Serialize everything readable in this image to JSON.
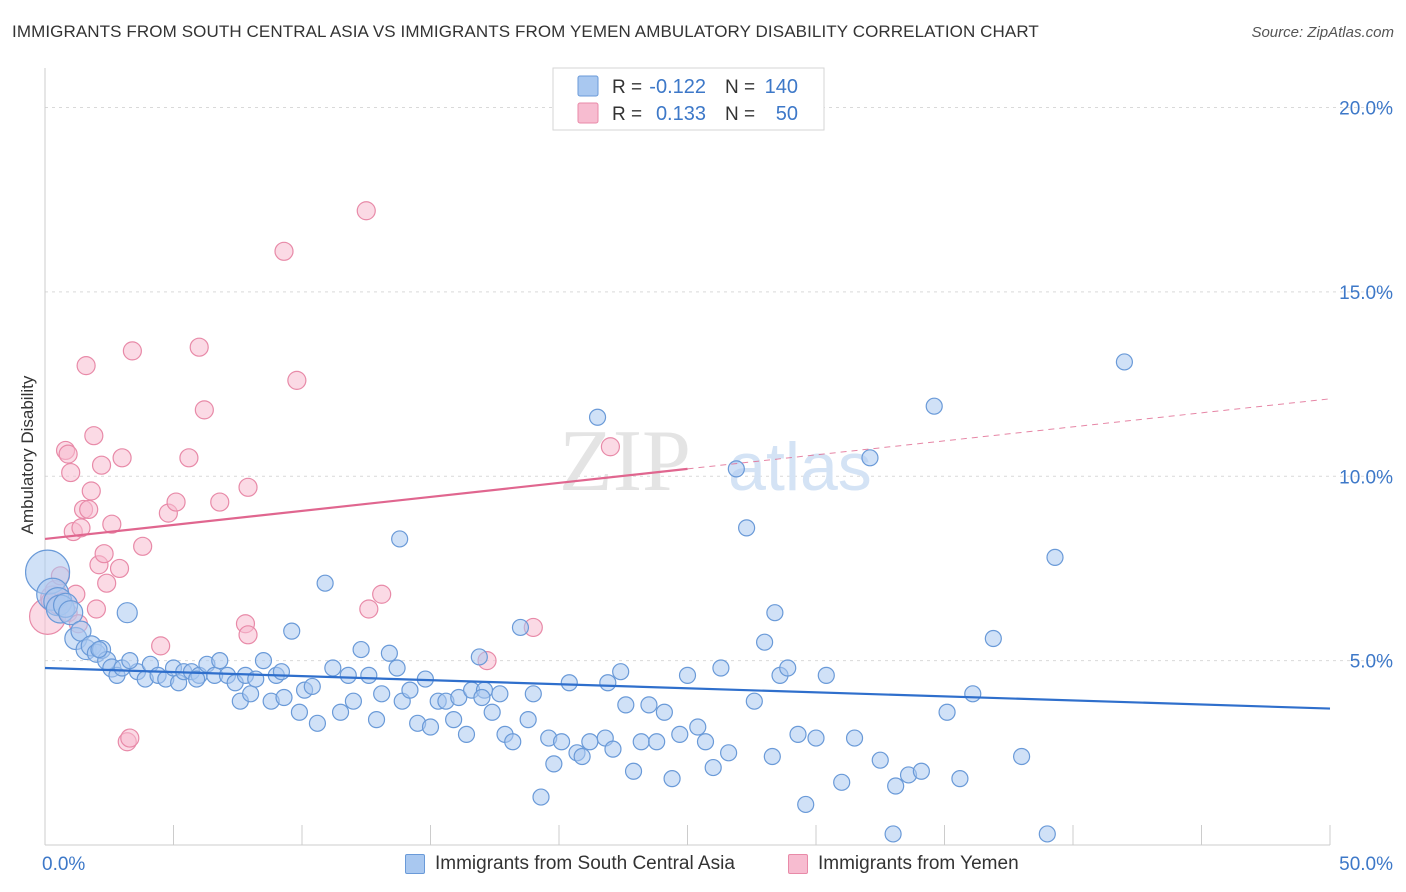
{
  "title": "IMMIGRANTS FROM SOUTH CENTRAL ASIA VS IMMIGRANTS FROM YEMEN AMBULATORY DISABILITY CORRELATION CHART",
  "source": "Source: ZipAtlas.com",
  "watermark": {
    "zip": "ZIP",
    "atlas": "atlas"
  },
  "colors": {
    "blue_fill": "#a9c8f0",
    "blue_stroke": "#6a9ad8",
    "blue_line": "#2f6fcc",
    "pink_fill": "#f7bcd0",
    "pink_stroke": "#e88aa8",
    "pink_line": "#e0668f",
    "tick_label": "#3d78c8",
    "grid": "#d9d9d9"
  },
  "legend": {
    "r_label": "R =",
    "n_label": "N =",
    "rows": [
      {
        "swatch": "blue",
        "r": "-0.122",
        "n": "140"
      },
      {
        "swatch": "pink",
        "r": "0.133",
        "n": "50"
      }
    ]
  },
  "bottom_legend": [
    {
      "swatch": "blue",
      "label": "Immigrants from South Central Asia"
    },
    {
      "swatch": "pink",
      "label": "Immigrants from Yemen"
    }
  ],
  "chart_data": {
    "type": "scatter",
    "xlabel": "",
    "ylabel": "Ambulatory Disability",
    "xlim": [
      0,
      50
    ],
    "ylim": [
      0,
      20.8
    ],
    "x_tick_labels": [
      {
        "value": 0,
        "label": "0.0%"
      },
      {
        "value": 50,
        "label": "50.0%"
      }
    ],
    "y_tick_labels": [
      {
        "value": 5,
        "label": "5.0%"
      },
      {
        "value": 10,
        "label": "10.0%"
      },
      {
        "value": 15,
        "label": "15.0%"
      },
      {
        "value": 20,
        "label": "20.0%"
      }
    ],
    "x_minor_ticks": [
      0,
      5,
      10,
      15,
      20,
      25,
      30,
      35,
      40,
      45,
      50
    ],
    "grid": "horizontal dashed",
    "legend_position": "top-center",
    "series": [
      {
        "name": "Immigrants from South Central Asia",
        "color": "blue",
        "trend": {
          "x": [
            0,
            50
          ],
          "y": [
            4.8,
            3.7
          ]
        },
        "points": [
          [
            0.1,
            7.4,
            22
          ],
          [
            0.3,
            6.8,
            16
          ],
          [
            0.5,
            6.6,
            14
          ],
          [
            0.6,
            6.4,
            14
          ],
          [
            0.8,
            6.5,
            12
          ],
          [
            1.0,
            6.3,
            12
          ],
          [
            1.2,
            5.6,
            11
          ],
          [
            1.4,
            5.8,
            10
          ],
          [
            1.6,
            5.3,
            10
          ],
          [
            1.8,
            5.4,
            10
          ],
          [
            2.0,
            5.2,
            9
          ],
          [
            2.2,
            5.3,
            9
          ],
          [
            2.4,
            5.0,
            9
          ],
          [
            2.6,
            4.8,
            9
          ],
          [
            2.8,
            4.6,
            8
          ],
          [
            3.0,
            4.8,
            8
          ],
          [
            3.2,
            6.3,
            10
          ],
          [
            3.6,
            4.7,
            8
          ],
          [
            3.9,
            4.5,
            8
          ],
          [
            4.1,
            4.9,
            8
          ],
          [
            4.4,
            4.6,
            8
          ],
          [
            4.7,
            4.5,
            8
          ],
          [
            5.0,
            4.8,
            8
          ],
          [
            5.2,
            4.4,
            8
          ],
          [
            5.4,
            4.7,
            8
          ],
          [
            5.7,
            4.7,
            8
          ],
          [
            6.0,
            4.6,
            8
          ],
          [
            6.3,
            4.9,
            8
          ],
          [
            6.6,
            4.6,
            8
          ],
          [
            6.8,
            5.0,
            8
          ],
          [
            7.1,
            4.6,
            8
          ],
          [
            7.4,
            4.4,
            8
          ],
          [
            7.6,
            3.9,
            8
          ],
          [
            7.8,
            4.6,
            8
          ],
          [
            8.0,
            4.1,
            8
          ],
          [
            8.2,
            4.5,
            8
          ],
          [
            8.5,
            5.0,
            8
          ],
          [
            8.8,
            3.9,
            8
          ],
          [
            9.0,
            4.6,
            8
          ],
          [
            9.3,
            4.0,
            8
          ],
          [
            9.6,
            5.8,
            8
          ],
          [
            9.9,
            3.6,
            8
          ],
          [
            10.1,
            4.2,
            8
          ],
          [
            10.4,
            4.3,
            8
          ],
          [
            10.6,
            3.3,
            8
          ],
          [
            10.9,
            7.1,
            8
          ],
          [
            11.2,
            4.8,
            8
          ],
          [
            11.5,
            3.6,
            8
          ],
          [
            11.8,
            4.6,
            8
          ],
          [
            12.0,
            3.9,
            8
          ],
          [
            12.3,
            5.3,
            8
          ],
          [
            12.6,
            4.6,
            8
          ],
          [
            12.9,
            3.4,
            8
          ],
          [
            13.1,
            4.1,
            8
          ],
          [
            13.4,
            5.2,
            8
          ],
          [
            13.7,
            4.8,
            8
          ],
          [
            13.9,
            3.9,
            8
          ],
          [
            14.2,
            4.2,
            8
          ],
          [
            14.5,
            3.3,
            8
          ],
          [
            14.8,
            4.5,
            8
          ],
          [
            15.0,
            3.2,
            8
          ],
          [
            15.3,
            3.9,
            8
          ],
          [
            15.6,
            3.9,
            8
          ],
          [
            15.9,
            3.4,
            8
          ],
          [
            16.1,
            4.0,
            8
          ],
          [
            16.4,
            3.0,
            8
          ],
          [
            16.6,
            4.2,
            8
          ],
          [
            16.9,
            5.1,
            8
          ],
          [
            17.1,
            4.2,
            8
          ],
          [
            17.4,
            3.6,
            8
          ],
          [
            17.7,
            4.1,
            8
          ],
          [
            17.9,
            3.0,
            8
          ],
          [
            18.2,
            2.8,
            8
          ],
          [
            18.5,
            5.9,
            8
          ],
          [
            18.8,
            3.4,
            8
          ],
          [
            19.0,
            4.1,
            8
          ],
          [
            19.3,
            1.3,
            8
          ],
          [
            19.6,
            2.9,
            8
          ],
          [
            19.8,
            2.2,
            8
          ],
          [
            20.1,
            2.8,
            8
          ],
          [
            20.4,
            4.4,
            8
          ],
          [
            20.7,
            2.5,
            8
          ],
          [
            20.9,
            2.4,
            8
          ],
          [
            21.2,
            2.8,
            8
          ],
          [
            21.5,
            11.6,
            8
          ],
          [
            21.8,
            2.9,
            8
          ],
          [
            22.1,
            2.6,
            8
          ],
          [
            22.4,
            4.7,
            8
          ],
          [
            22.6,
            3.8,
            8
          ],
          [
            22.9,
            2.0,
            8
          ],
          [
            23.2,
            2.8,
            8
          ],
          [
            23.5,
            3.8,
            8
          ],
          [
            23.8,
            2.8,
            8
          ],
          [
            24.1,
            3.6,
            8
          ],
          [
            24.4,
            1.8,
            8
          ],
          [
            24.7,
            3.0,
            8
          ],
          [
            25.0,
            4.6,
            8
          ],
          [
            25.4,
            3.2,
            8
          ],
          [
            25.7,
            2.8,
            8
          ],
          [
            26.0,
            2.1,
            8
          ],
          [
            26.3,
            4.8,
            8
          ],
          [
            26.6,
            2.5,
            8
          ],
          [
            26.9,
            10.2,
            8
          ],
          [
            27.3,
            8.6,
            8
          ],
          [
            27.6,
            3.9,
            8
          ],
          [
            28.0,
            5.5,
            8
          ],
          [
            28.3,
            2.4,
            8
          ],
          [
            28.6,
            4.6,
            8
          ],
          [
            28.9,
            4.8,
            8
          ],
          [
            29.3,
            3.0,
            8
          ],
          [
            29.6,
            1.1,
            8
          ],
          [
            30.0,
            2.9,
            8
          ],
          [
            30.4,
            4.6,
            8
          ],
          [
            31.0,
            1.7,
            8
          ],
          [
            31.5,
            2.9,
            8
          ],
          [
            32.1,
            10.5,
            8
          ],
          [
            32.5,
            2.3,
            8
          ],
          [
            33.1,
            1.6,
            8
          ],
          [
            33.6,
            1.9,
            8
          ],
          [
            34.1,
            2.0,
            8
          ],
          [
            34.6,
            11.9,
            8
          ],
          [
            35.1,
            3.6,
            8
          ],
          [
            35.6,
            1.8,
            8
          ],
          [
            36.1,
            4.1,
            8
          ],
          [
            36.9,
            5.6,
            8
          ],
          [
            38.0,
            2.4,
            8
          ],
          [
            39.3,
            7.8,
            8
          ],
          [
            42.0,
            13.1,
            8
          ],
          [
            39.0,
            0.3,
            8
          ],
          [
            33.0,
            0.3,
            8
          ],
          [
            17.0,
            4.0,
            8
          ],
          [
            9.2,
            4.7,
            8
          ],
          [
            5.9,
            4.5,
            8
          ],
          [
            3.3,
            5.0,
            8
          ],
          [
            2.1,
            5.3,
            8
          ],
          [
            28.4,
            6.3,
            8
          ],
          [
            21.9,
            4.4,
            8
          ],
          [
            13.8,
            8.3,
            8
          ]
        ]
      },
      {
        "name": "Immigrants from Yemen",
        "color": "pink",
        "trend": {
          "x": [
            0,
            25
          ],
          "y": [
            8.3,
            10.2
          ]
        },
        "trend_extension": {
          "x": [
            25,
            50
          ],
          "y": [
            10.2,
            12.1
          ]
        },
        "points": [
          [
            0.1,
            6.2,
            18
          ],
          [
            0.3,
            6.7,
            12
          ],
          [
            0.4,
            6.9,
            10
          ],
          [
            0.6,
            7.3,
            9
          ],
          [
            0.7,
            6.6,
            9
          ],
          [
            0.8,
            10.7,
            9
          ],
          [
            0.9,
            10.6,
            9
          ],
          [
            1.0,
            10.1,
            9
          ],
          [
            1.1,
            8.5,
            9
          ],
          [
            1.2,
            6.8,
            9
          ],
          [
            1.4,
            8.6,
            9
          ],
          [
            1.5,
            9.1,
            9
          ],
          [
            1.6,
            13.0,
            9
          ],
          [
            1.7,
            9.1,
            9
          ],
          [
            1.8,
            9.6,
            9
          ],
          [
            1.9,
            11.1,
            9
          ],
          [
            2.0,
            6.4,
            9
          ],
          [
            2.1,
            7.6,
            9
          ],
          [
            2.2,
            10.3,
            9
          ],
          [
            2.3,
            7.9,
            9
          ],
          [
            2.6,
            8.7,
            9
          ],
          [
            2.9,
            7.5,
            9
          ],
          [
            3.0,
            10.5,
            9
          ],
          [
            3.2,
            2.8,
            9
          ],
          [
            3.3,
            2.9,
            9
          ],
          [
            3.4,
            13.4,
            9
          ],
          [
            3.8,
            8.1,
            9
          ],
          [
            4.5,
            5.4,
            9
          ],
          [
            4.8,
            9.0,
            9
          ],
          [
            5.1,
            9.3,
            9
          ],
          [
            5.6,
            10.5,
            9
          ],
          [
            6.0,
            13.5,
            9
          ],
          [
            6.2,
            11.8,
            9
          ],
          [
            6.8,
            9.3,
            9
          ],
          [
            7.8,
            6.0,
            9
          ],
          [
            7.9,
            5.7,
            9
          ],
          [
            7.9,
            9.7,
            9
          ],
          [
            9.3,
            16.1,
            9
          ],
          [
            9.8,
            12.6,
            9
          ],
          [
            12.5,
            17.2,
            9
          ],
          [
            12.6,
            6.4,
            9
          ],
          [
            13.1,
            6.8,
            9
          ],
          [
            17.2,
            5.0,
            9
          ],
          [
            19.0,
            5.9,
            9
          ],
          [
            22.0,
            10.8,
            9
          ],
          [
            0.2,
            6.6,
            9
          ],
          [
            0.5,
            6.5,
            9
          ],
          [
            0.9,
            6.3,
            9
          ],
          [
            1.3,
            6.0,
            9
          ],
          [
            2.4,
            7.1,
            9
          ]
        ]
      }
    ]
  }
}
